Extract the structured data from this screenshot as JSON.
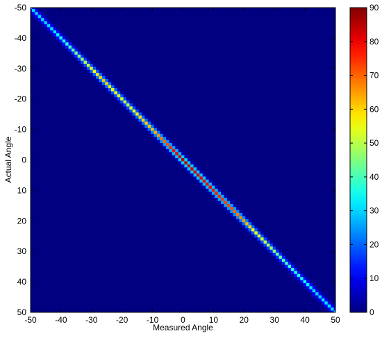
{
  "chart_data": {
    "type": "heatmap",
    "title": "",
    "xlabel": "Measured Angle",
    "ylabel": "Actual Angle",
    "xlim": [
      -50,
      50
    ],
    "ylim": [
      -50,
      50
    ],
    "y_direction": "reversed",
    "x_ticks": [
      -50,
      -40,
      -30,
      -20,
      -10,
      0,
      10,
      20,
      30,
      40,
      50
    ],
    "y_ticks": [
      -50,
      -40,
      -30,
      -20,
      -10,
      0,
      10,
      20,
      30,
      40,
      50
    ],
    "colormap": "jet",
    "colorbar": {
      "range": [
        0,
        90
      ],
      "ticks": [
        0,
        10,
        20,
        30,
        40,
        50,
        60,
        70,
        80,
        90
      ],
      "placement": "right"
    },
    "background_value": 0,
    "diagonal": {
      "relation": "measured = actual",
      "points": [
        {
          "x": -50,
          "y": -50,
          "value": 30
        },
        {
          "x": -46,
          "y": -46,
          "value": 30
        },
        {
          "x": -42,
          "y": -42,
          "value": 32
        },
        {
          "x": -38,
          "y": -38,
          "value": 38
        },
        {
          "x": -34,
          "y": -34,
          "value": 45
        },
        {
          "x": -30,
          "y": -30,
          "value": 55
        },
        {
          "x": -26,
          "y": -26,
          "value": 62
        },
        {
          "x": -22,
          "y": -22,
          "value": 55
        },
        {
          "x": -18,
          "y": -18,
          "value": 50
        },
        {
          "x": -14,
          "y": -14,
          "value": 60
        },
        {
          "x": -10,
          "y": -10,
          "value": 62
        },
        {
          "x": -6,
          "y": -6,
          "value": 70
        },
        {
          "x": -2,
          "y": -2,
          "value": 80
        },
        {
          "x": 0,
          "y": 0,
          "value": 85
        },
        {
          "x": 4,
          "y": 4,
          "value": 82
        },
        {
          "x": 8,
          "y": 8,
          "value": 80
        },
        {
          "x": 12,
          "y": 12,
          "value": 75
        },
        {
          "x": 16,
          "y": 16,
          "value": 72
        },
        {
          "x": 20,
          "y": 20,
          "value": 65
        },
        {
          "x": 24,
          "y": 24,
          "value": 55
        },
        {
          "x": 28,
          "y": 28,
          "value": 50
        },
        {
          "x": 32,
          "y": 32,
          "value": 42
        },
        {
          "x": 36,
          "y": 36,
          "value": 38
        },
        {
          "x": 40,
          "y": 40,
          "value": 35
        },
        {
          "x": 44,
          "y": 44,
          "value": 30
        },
        {
          "x": 48,
          "y": 48,
          "value": 32
        },
        {
          "x": 50,
          "y": 50,
          "value": 30
        }
      ]
    }
  }
}
